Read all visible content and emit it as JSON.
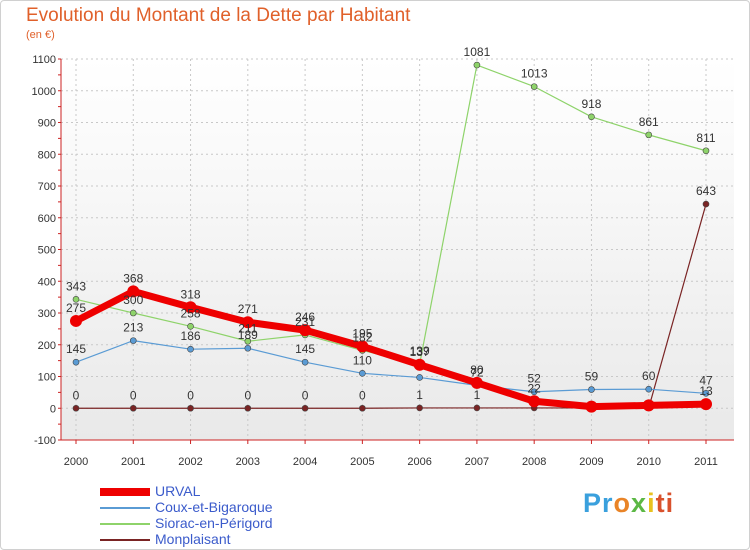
{
  "chart_data": {
    "type": "line",
    "title": "Evolution du Montant de la Dette par Habitant",
    "subtitle": "(en €)",
    "xlabel": "",
    "ylabel": "",
    "ylim": [
      -100,
      1100
    ],
    "y_ticks": [
      "-100",
      "0",
      "100",
      "200",
      "300",
      "400",
      "500",
      "600",
      "700",
      "800",
      "900",
      "1000",
      "1100"
    ],
    "categories": [
      "2000",
      "2001",
      "2002",
      "2003",
      "2004",
      "2005",
      "2006",
      "2007",
      "2008",
      "2009",
      "2010",
      "2011"
    ],
    "grid": true,
    "legend_position": "bottom-left",
    "series": [
      {
        "name": "URVAL",
        "color": "#ee0000",
        "values": [
          275,
          368,
          318,
          271,
          246,
          195,
          137,
          80,
          22,
          5,
          9,
          13
        ],
        "labels": [
          "275",
          "368",
          "318",
          "271",
          "246",
          "195",
          "137",
          "80",
          "22",
          "",
          "",
          "13"
        ]
      },
      {
        "name": "Coux-et-Bigaroque",
        "color": "#5a9bd4",
        "values": [
          145,
          213,
          186,
          189,
          145,
          110,
          97,
          72,
          52,
          59,
          60,
          47
        ],
        "labels": [
          "145",
          "213",
          "186",
          "189",
          "145",
          "110",
          "",
          "72",
          "52",
          "59",
          "60",
          "47"
        ]
      },
      {
        "name": "Siorac-en-Périgord",
        "color": "#8ed36a",
        "values": [
          343,
          300,
          258,
          211,
          231,
          182,
          139,
          1081,
          1013,
          918,
          861,
          811
        ],
        "labels": [
          "343",
          "300",
          "258",
          "211",
          "231",
          "182",
          "139",
          "1081",
          "1013",
          "918",
          "861",
          "811"
        ]
      },
      {
        "name": "Monplaisant",
        "color": "#7a2424",
        "values": [
          0,
          0,
          0,
          0,
          0,
          0,
          1,
          1,
          1,
          1,
          1,
          643
        ],
        "labels": [
          "0",
          "0",
          "0",
          "0",
          "0",
          "0",
          "1",
          "1",
          "",
          "",
          "",
          "643"
        ]
      }
    ]
  },
  "logo": {
    "parts": [
      "Pr",
      "o",
      "x",
      "i",
      "ti"
    ]
  }
}
